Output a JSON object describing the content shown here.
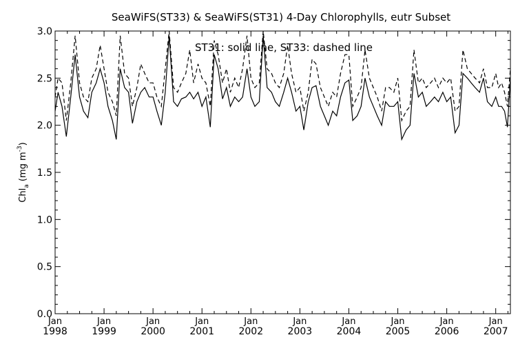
{
  "chart_data": {
    "type": "line",
    "title": "SeaWiFS(ST33) & SeaWiFS(ST31) 4-Day Chlorophylls, eutr Subset",
    "annotation": "ST31: solid line,  ST33: dashed line",
    "ylabel_main": "Chl",
    "ylabel_sub": "a",
    "ylabel_unit": " (mg m",
    "ylabel_exp": "-3",
    "ylabel_close": ")",
    "ylim": [
      0.0,
      3.0
    ],
    "xlim": [
      1998.0,
      2007.3
    ],
    "yticks": [
      "0.0",
      "0.5",
      "1.0",
      "1.5",
      "2.0",
      "2.5",
      "3.0"
    ],
    "xticks": [
      {
        "month": "Jan",
        "year": "1998"
      },
      {
        "month": "Jan",
        "year": "1999"
      },
      {
        "month": "Jan",
        "year": "2000"
      },
      {
        "month": "Jan",
        "year": "2001"
      },
      {
        "month": "Jan",
        "year": "2002"
      },
      {
        "month": "Jan",
        "year": "2003"
      },
      {
        "month": "Jan",
        "year": "2004"
      },
      {
        "month": "Jan",
        "year": "2005"
      },
      {
        "month": "Jan",
        "year": "2006"
      },
      {
        "month": "Jan",
        "year": "2007"
      }
    ],
    "grid": false,
    "series": [
      {
        "style": "solid",
        "x": [
          1998.0,
          1998.06,
          1998.14,
          1998.23,
          1998.32,
          1998.41,
          1998.5,
          1998.58,
          1998.67,
          1998.75,
          1998.84,
          1998.92,
          1999.0,
          1999.08,
          1999.17,
          1999.25,
          1999.33,
          1999.42,
          1999.5,
          1999.58,
          1999.67,
          1999.75,
          1999.83,
          1999.92,
          2000.0,
          2000.08,
          2000.17,
          2000.25,
          2000.33,
          2000.42,
          2000.5,
          2000.58,
          2000.67,
          2000.75,
          2000.83,
          2000.92,
          2001.0,
          2001.08,
          2001.17,
          2001.25,
          2001.33,
          2001.42,
          2001.5,
          2001.58,
          2001.67,
          2001.75,
          2001.83,
          2001.92,
          2002.0,
          2002.08,
          2002.17,
          2002.25,
          2002.33,
          2002.42,
          2002.5,
          2002.58,
          2002.67,
          2002.75,
          2002.83,
          2002.92,
          2003.0,
          2003.08,
          2003.17,
          2003.25,
          2003.33,
          2003.42,
          2003.5,
          2003.58,
          2003.67,
          2003.75,
          2003.83,
          2003.92,
          2004.0,
          2004.08,
          2004.17,
          2004.25,
          2004.33,
          2004.42,
          2004.5,
          2004.58,
          2004.67,
          2004.75,
          2004.83,
          2004.92,
          2005.0,
          2005.08,
          2005.17,
          2005.25,
          2005.33,
          2005.42,
          2005.5,
          2005.58,
          2005.67,
          2005.75,
          2005.83,
          2005.92,
          2006.0,
          2006.08,
          2006.17,
          2006.25,
          2006.33,
          2006.42,
          2006.5,
          2006.58,
          2006.67,
          2006.75,
          2006.83,
          2006.92,
          2007.0,
          2007.06,
          2007.12,
          2007.18,
          2007.24,
          2007.3
        ],
        "y": [
          2.15,
          2.35,
          2.2,
          1.88,
          2.3,
          2.75,
          2.3,
          2.15,
          2.08,
          2.35,
          2.45,
          2.6,
          2.45,
          2.2,
          2.05,
          1.85,
          2.6,
          2.4,
          2.35,
          2.02,
          2.25,
          2.35,
          2.4,
          2.3,
          2.3,
          2.15,
          2.0,
          2.35,
          2.95,
          2.25,
          2.2,
          2.28,
          2.3,
          2.35,
          2.28,
          2.35,
          2.2,
          2.3,
          1.98,
          2.75,
          2.6,
          2.28,
          2.4,
          2.2,
          2.3,
          2.25,
          2.3,
          2.6,
          2.3,
          2.2,
          2.25,
          2.95,
          2.4,
          2.35,
          2.25,
          2.2,
          2.35,
          2.5,
          2.35,
          2.15,
          2.2,
          1.95,
          2.25,
          2.4,
          2.42,
          2.2,
          2.1,
          2.0,
          2.15,
          2.1,
          2.3,
          2.45,
          2.48,
          2.05,
          2.1,
          2.2,
          2.5,
          2.3,
          2.2,
          2.1,
          2.0,
          2.25,
          2.2,
          2.2,
          2.25,
          1.85,
          1.95,
          2.0,
          2.55,
          2.3,
          2.35,
          2.2,
          2.25,
          2.3,
          2.25,
          2.35,
          2.25,
          2.3,
          1.92,
          2.0,
          2.55,
          2.5,
          2.45,
          2.4,
          2.35,
          2.5,
          2.25,
          2.2,
          2.3,
          2.2,
          2.2,
          2.15,
          1.98,
          2.5
        ]
      },
      {
        "style": "dashed",
        "x": [
          1998.0,
          1998.06,
          1998.14,
          1998.23,
          1998.32,
          1998.41,
          1998.5,
          1998.58,
          1998.67,
          1998.75,
          1998.84,
          1998.92,
          1999.0,
          1999.08,
          1999.17,
          1999.25,
          1999.33,
          1999.42,
          1999.5,
          1999.58,
          1999.67,
          1999.75,
          1999.83,
          1999.92,
          2000.0,
          2000.08,
          2000.17,
          2000.25,
          2000.33,
          2000.42,
          2000.5,
          2000.58,
          2000.67,
          2000.75,
          2000.83,
          2000.92,
          2001.0,
          2001.08,
          2001.17,
          2001.25,
          2001.33,
          2001.42,
          2001.5,
          2001.58,
          2001.67,
          2001.75,
          2001.83,
          2001.92,
          2002.0,
          2002.08,
          2002.17,
          2002.25,
          2002.33,
          2002.42,
          2002.5,
          2002.58,
          2002.67,
          2002.75,
          2002.83,
          2002.92,
          2003.0,
          2003.08,
          2003.17,
          2003.25,
          2003.33,
          2003.42,
          2003.5,
          2003.58,
          2003.67,
          2003.75,
          2003.83,
          2003.92,
          2004.0,
          2004.08,
          2004.17,
          2004.25,
          2004.33,
          2004.42,
          2004.5,
          2004.58,
          2004.67,
          2004.75,
          2004.83,
          2004.92,
          2005.0,
          2005.08,
          2005.17,
          2005.25,
          2005.33,
          2005.42,
          2005.5,
          2005.58,
          2005.67,
          2005.75,
          2005.83,
          2005.92,
          2006.0,
          2006.08,
          2006.17,
          2006.25,
          2006.33,
          2006.42,
          2006.5,
          2006.58,
          2006.67,
          2006.75,
          2006.83,
          2006.92,
          2007.0,
          2007.06,
          2007.12,
          2007.18,
          2007.24,
          2007.3
        ],
        "y": [
          2.3,
          2.5,
          2.45,
          2.05,
          2.45,
          2.95,
          2.45,
          2.3,
          2.25,
          2.5,
          2.6,
          2.85,
          2.6,
          2.35,
          2.25,
          2.1,
          2.95,
          2.55,
          2.5,
          2.2,
          2.4,
          2.65,
          2.55,
          2.45,
          2.45,
          2.3,
          2.2,
          2.6,
          3.0,
          2.4,
          2.35,
          2.45,
          2.55,
          2.8,
          2.45,
          2.65,
          2.5,
          2.45,
          2.2,
          2.9,
          2.75,
          2.45,
          2.6,
          2.35,
          2.5,
          2.4,
          2.6,
          2.95,
          2.5,
          2.4,
          2.45,
          3.0,
          2.6,
          2.55,
          2.45,
          2.4,
          2.55,
          2.85,
          2.55,
          2.35,
          2.4,
          2.15,
          2.35,
          2.7,
          2.65,
          2.4,
          2.3,
          2.2,
          2.35,
          2.3,
          2.55,
          2.75,
          2.75,
          2.2,
          2.3,
          2.4,
          2.8,
          2.5,
          2.4,
          2.3,
          2.15,
          2.4,
          2.4,
          2.35,
          2.5,
          2.05,
          2.15,
          2.2,
          2.8,
          2.45,
          2.5,
          2.4,
          2.45,
          2.5,
          2.4,
          2.5,
          2.45,
          2.5,
          2.15,
          2.2,
          2.8,
          2.6,
          2.55,
          2.5,
          2.45,
          2.6,
          2.4,
          2.4,
          2.55,
          2.4,
          2.45,
          2.35,
          2.2,
          2.6
        ]
      }
    ]
  }
}
